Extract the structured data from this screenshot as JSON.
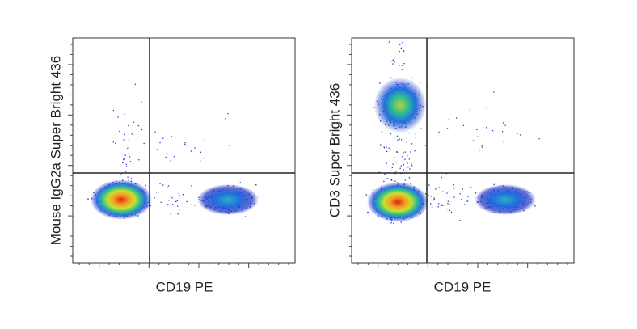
{
  "chart_data": [
    {
      "type": "scatter",
      "x_label": "CD19 PE",
      "y_label": "Mouse IgG2a Super Bright 436"
    },
    {
      "type": "scatter",
      "x_label": "CD19 PE",
      "y_label": "CD3 Super Bright 436"
    }
  ]
}
